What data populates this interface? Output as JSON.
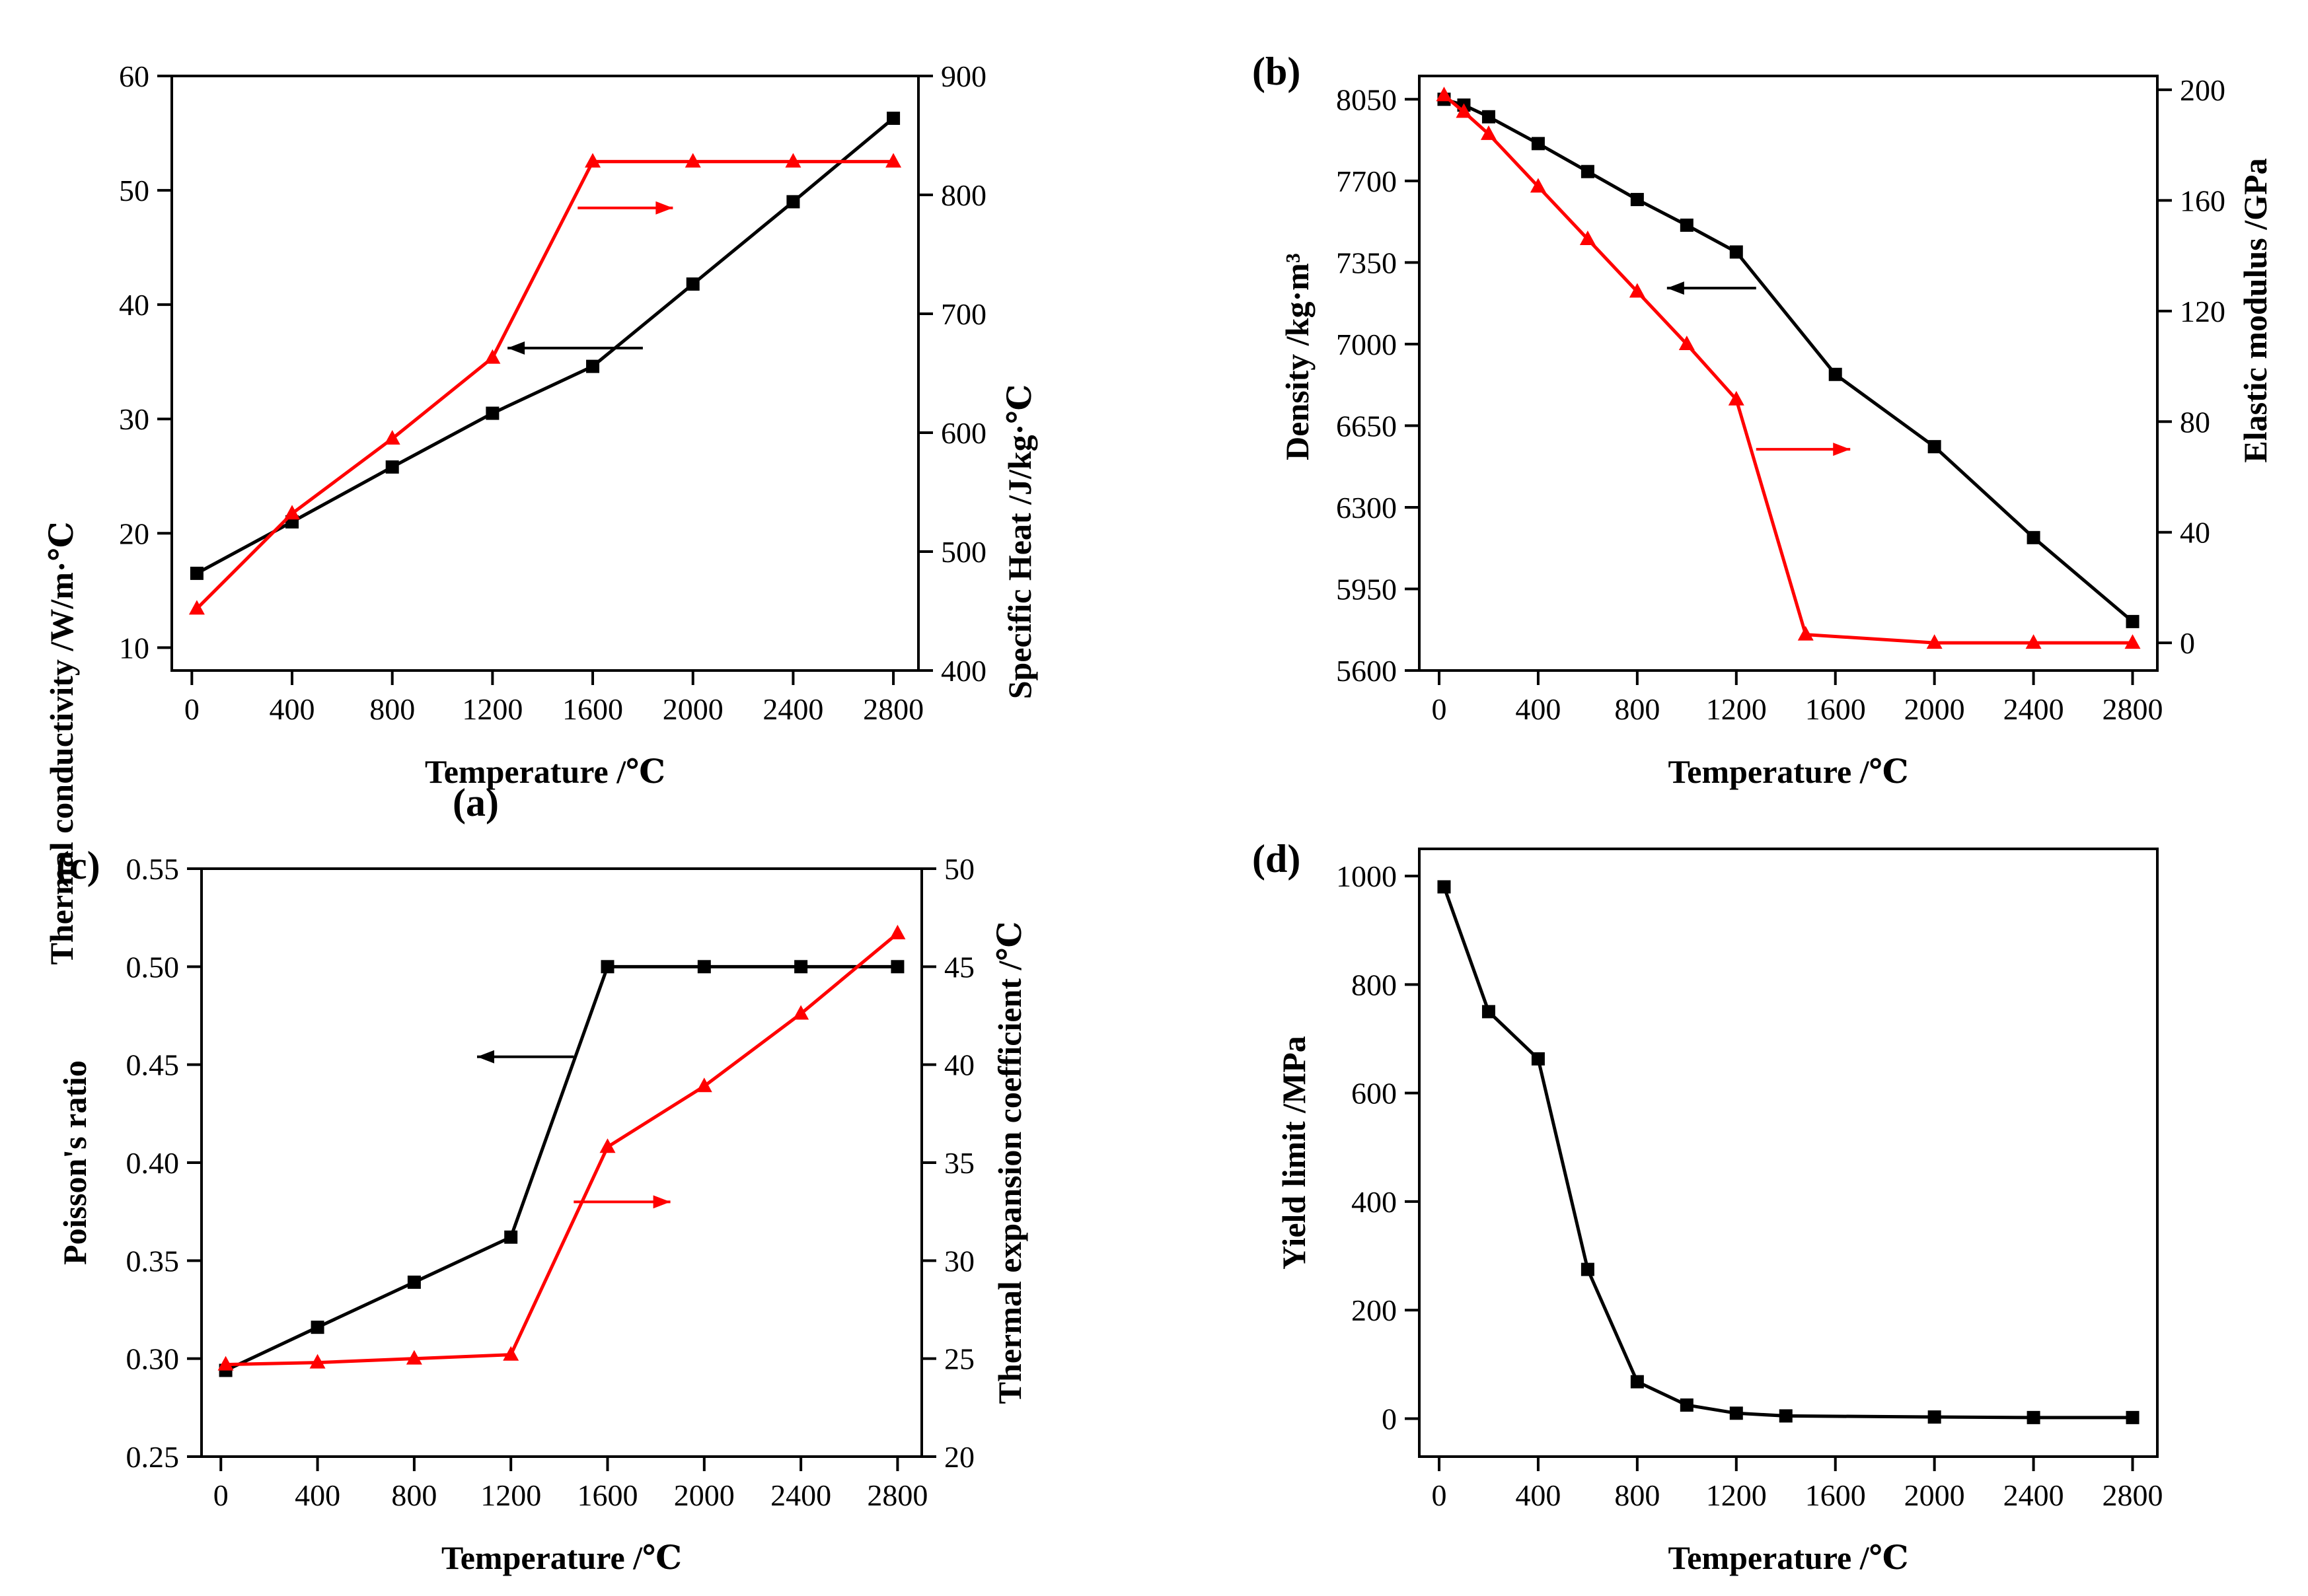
{
  "chart_data": [
    {
      "type": "line",
      "panel_label": "(a)",
      "xlabel": "Temperature /℃",
      "ylabel_left": "Thermal conductivity /W/m·℃",
      "ylabel_right": "Specific Heat /J/kg·℃",
      "xlim": [
        -80,
        2900
      ],
      "ylim_left": [
        8,
        60
      ],
      "ylim_right": [
        400,
        900
      ],
      "xticks": [
        0,
        400,
        800,
        1200,
        1600,
        2000,
        2400,
        2800
      ],
      "yticks_left": [
        10,
        20,
        30,
        40,
        50,
        60
      ],
      "yticks_right": [
        400,
        500,
        600,
        700,
        800,
        900
      ],
      "series": [
        {
          "name": "Thermal conductivity",
          "axis": "left",
          "marker": "square",
          "color": "#000000",
          "x": [
            20,
            400,
            800,
            1200,
            1600,
            2000,
            2400,
            2800
          ],
          "values": [
            16.5,
            21.0,
            25.8,
            30.5,
            34.6,
            41.8,
            49.0,
            56.3
          ]
        },
        {
          "name": "Specific Heat",
          "axis": "right",
          "marker": "triangle",
          "color": "#ff0000",
          "x": [
            20,
            400,
            800,
            1200,
            1600,
            2000,
            2400,
            2800
          ],
          "values": [
            452,
            532,
            595,
            663,
            828,
            828,
            828,
            828
          ]
        }
      ],
      "annotations": [
        {
          "type": "arrow",
          "direction": "left",
          "target_axis": "left",
          "color": "#000000",
          "x_data": [
            1260,
            1800
          ],
          "y_data": 36.2
        },
        {
          "type": "arrow",
          "direction": "right",
          "target_axis": "right",
          "color": "#ff0000",
          "x_data": [
            1540,
            1920
          ],
          "y_data": 789
        }
      ]
    },
    {
      "type": "line",
      "panel_label": "(b)",
      "xlabel": "Temperature /℃",
      "ylabel_left": "Density /kg·m³",
      "ylabel_right": "Elastic modulus /GPa",
      "xlim": [
        -80,
        2900
      ],
      "ylim_left": [
        5600,
        8150
      ],
      "ylim_right": [
        -10,
        205
      ],
      "xticks": [
        0,
        400,
        800,
        1200,
        1600,
        2000,
        2400,
        2800
      ],
      "yticks_left": [
        5600,
        5950,
        6300,
        6650,
        7000,
        7350,
        7700,
        8050
      ],
      "yticks_right": [
        0,
        40,
        80,
        120,
        160,
        200
      ],
      "series": [
        {
          "name": "Density",
          "axis": "left",
          "marker": "square",
          "color": "#000000",
          "x": [
            20,
            100,
            200,
            400,
            600,
            800,
            1000,
            1200,
            1600,
            2000,
            2400,
            2800
          ],
          "values": [
            8050,
            8025,
            7975,
            7860,
            7740,
            7620,
            7510,
            7395,
            6870,
            6560,
            6170,
            5810
          ]
        },
        {
          "name": "Elastic modulus",
          "axis": "right",
          "marker": "triangle",
          "color": "#ff0000",
          "x": [
            20,
            100,
            200,
            400,
            600,
            800,
            1000,
            1200,
            1480,
            2000,
            2400,
            2800
          ],
          "values": [
            198,
            192,
            184,
            165,
            146,
            127,
            108,
            88,
            3,
            0,
            0,
            0
          ]
        }
      ],
      "annotations": [
        {
          "type": "arrow",
          "direction": "left",
          "target_axis": "left",
          "color": "#000000",
          "x_data": [
            920,
            1280
          ],
          "y_data": 7240
        },
        {
          "type": "arrow",
          "direction": "right",
          "target_axis": "right",
          "color": "#ff0000",
          "x_data": [
            1280,
            1660
          ],
          "y_data": 70
        }
      ]
    },
    {
      "type": "line",
      "panel_label": "(c)",
      "xlabel": "Temperature /℃",
      "ylabel_left": "Poisson's ratio",
      "ylabel_right": "Thermal expansion coefficient /℃",
      "xlim": [
        -80,
        2900
      ],
      "ylim_left": [
        0.25,
        0.55
      ],
      "ylim_right": [
        20,
        50
      ],
      "xticks": [
        0,
        400,
        800,
        1200,
        1600,
        2000,
        2400,
        2800
      ],
      "yticks_left": [
        0.25,
        0.3,
        0.35,
        0.4,
        0.45,
        0.5,
        0.55
      ],
      "yticks_right": [
        20,
        25,
        30,
        35,
        40,
        45,
        50
      ],
      "series": [
        {
          "name": "Poisson's ratio",
          "axis": "left",
          "marker": "square",
          "color": "#000000",
          "x": [
            20,
            400,
            800,
            1200,
            1600,
            2000,
            2400,
            2800
          ],
          "values": [
            0.294,
            0.316,
            0.339,
            0.362,
            0.5,
            0.5,
            0.5,
            0.5
          ]
        },
        {
          "name": "Thermal expansion coefficient",
          "axis": "right",
          "marker": "triangle",
          "color": "#ff0000",
          "x": [
            20,
            400,
            800,
            1200,
            1600,
            2000,
            2400,
            2800
          ],
          "values": [
            24.7,
            24.8,
            25.0,
            25.2,
            35.8,
            38.9,
            42.6,
            46.7
          ]
        }
      ],
      "annotations": [
        {
          "type": "arrow",
          "direction": "left",
          "target_axis": "left",
          "color": "#000000",
          "x_data": [
            1060,
            1460
          ],
          "y_data": 0.454
        },
        {
          "type": "arrow",
          "direction": "right",
          "target_axis": "right",
          "color": "#ff0000",
          "x_data": [
            1460,
            1860
          ],
          "y_data": 33.0
        }
      ]
    },
    {
      "type": "line",
      "panel_label": "(d)",
      "xlabel": "Temperature /℃",
      "ylabel_left": "Yield limit /MPa",
      "xlim": [
        -80,
        2900
      ],
      "ylim_left": [
        -70,
        1050
      ],
      "xticks": [
        0,
        400,
        800,
        1200,
        1600,
        2000,
        2400,
        2800
      ],
      "yticks_left": [
        0,
        200,
        400,
        600,
        800,
        1000
      ],
      "series": [
        {
          "name": "Yield limit",
          "axis": "left",
          "marker": "square",
          "color": "#000000",
          "x": [
            20,
            200,
            400,
            600,
            800,
            1000,
            1200,
            1400,
            2000,
            2400,
            2800
          ],
          "values": [
            980,
            750,
            663,
            275,
            68,
            25,
            10,
            5,
            3,
            2,
            2
          ]
        }
      ],
      "annotations": []
    }
  ]
}
